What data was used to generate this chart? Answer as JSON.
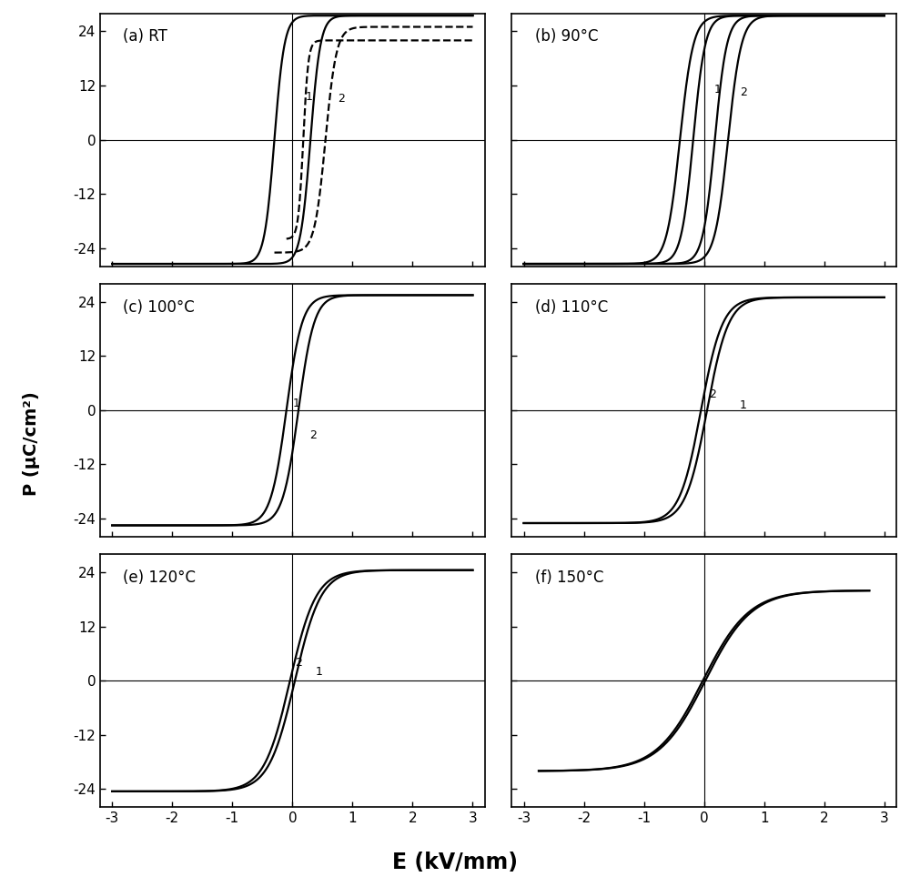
{
  "subplots": [
    {
      "label": "(a) RT",
      "row": 0,
      "col": 0
    },
    {
      "label": "(b) 90°C",
      "row": 0,
      "col": 1
    },
    {
      "label": "(c) 100°C",
      "row": 1,
      "col": 0
    },
    {
      "label": "(d) 110°C",
      "row": 1,
      "col": 1
    },
    {
      "label": "(e) 120°C",
      "row": 2,
      "col": 0
    },
    {
      "label": "(f) 150°C",
      "row": 2,
      "col": 1
    }
  ],
  "xlim": [
    -3.2,
    3.2
  ],
  "ylim": [
    -28,
    28
  ],
  "yticks": [
    -24,
    -12,
    0,
    12,
    24
  ],
  "xticks": [
    -3,
    -2,
    -1,
    0,
    1,
    2,
    3
  ],
  "xlabel": "E (kV/mm)",
  "ylabel": "P (μC/cm²)",
  "bg_color": "white",
  "figsize": [
    10.0,
    9.75
  ],
  "dpi": 100
}
